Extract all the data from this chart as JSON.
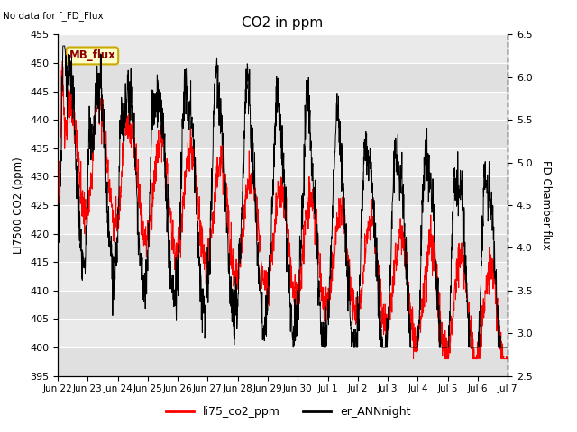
{
  "title": "CO2 in ppm",
  "no_data_text": "No data for f_FD_Flux",
  "ylabel_left": "LI7500 CO2 (ppm)",
  "ylabel_right": "FD Chamber flux",
  "ylim_left": [
    395,
    455
  ],
  "ylim_right": [
    2.5,
    6.5
  ],
  "yticks_left": [
    395,
    400,
    405,
    410,
    415,
    420,
    425,
    430,
    435,
    440,
    445,
    450,
    455
  ],
  "yticks_right": [
    2.5,
    3.0,
    3.5,
    4.0,
    4.5,
    5.0,
    5.5,
    6.0,
    6.5
  ],
  "xtick_labels": [
    "Jun 22",
    "Jun 23",
    "Jun 24",
    "Jun 25",
    "Jun 26",
    "Jun 27",
    "Jun 28",
    "Jun 29",
    "Jun 30",
    "Jul 1",
    "Jul 2",
    "Jul 3",
    "Jul 4",
    "Jul 5",
    "Jul 6",
    "Jul 7"
  ],
  "legend_entries": [
    "li75_co2_ppm",
    "er_ANNnight"
  ],
  "line_colors": [
    "red",
    "black"
  ],
  "mb_flux_label": "MB_flux",
  "stripe_colors": [
    "#e0e0e0",
    "#eaeaea"
  ],
  "n_points": 2000
}
